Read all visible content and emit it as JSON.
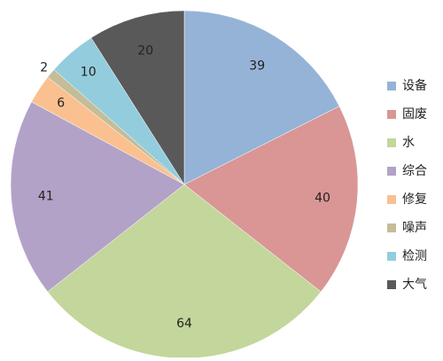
{
  "chart_data": {
    "type": "pie",
    "categories": [
      "设备",
      "固废",
      "水",
      "综合",
      "修复",
      "噪声",
      "检测",
      "大气"
    ],
    "values": [
      39,
      40,
      64,
      41,
      6,
      2,
      10,
      20
    ],
    "colors": [
      "#95b3d7",
      "#d99694",
      "#c3d69b",
      "#b3a2c7",
      "#fac090",
      "#c4bd97",
      "#93cddd",
      "#595959"
    ],
    "legend": "right"
  }
}
